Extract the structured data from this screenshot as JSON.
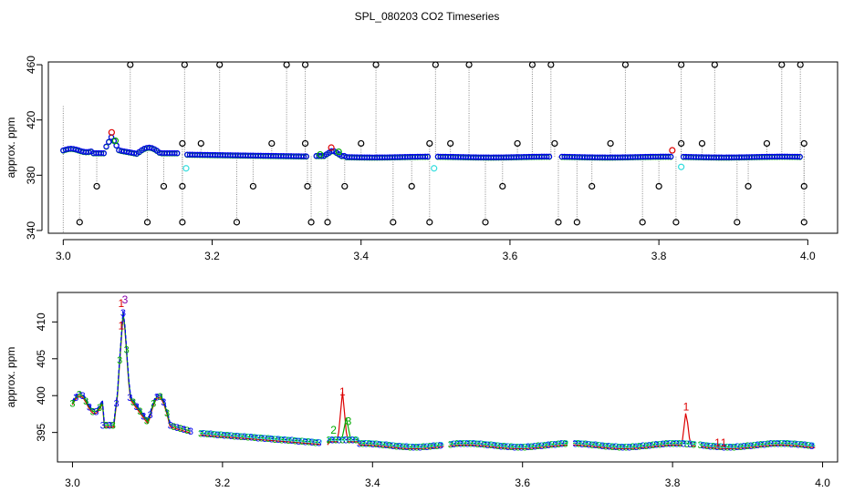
{
  "title": "SPL_080203  CO2 Timeseries",
  "colors": {
    "black": "#000000",
    "red": "#dd0000",
    "green": "#00aa00",
    "blue": "#0000ee",
    "cyan": "#33dddd",
    "grey": "#888888",
    "purple": "#8800aa"
  },
  "chart_data": [
    {
      "type": "scatter",
      "title": "SPL_080203  CO2 Timeseries",
      "xlabel": "",
      "ylabel": "approx. ppm",
      "xlim": [
        2.98,
        4.04
      ],
      "ylim": [
        338,
        462
      ],
      "xticks": [
        3.0,
        3.2,
        3.4,
        3.6,
        3.8,
        4.0
      ],
      "xticklabels": [
        "3.0",
        "3.2",
        "3.4",
        "3.6",
        "3.8",
        "4.0"
      ],
      "yticks": [
        340,
        380,
        420,
        460
      ],
      "yticklabels": [
        "340",
        "380",
        "420",
        "460"
      ],
      "grid": false,
      "legend": "none",
      "gaps": [
        [
          3.155,
          3.165
        ],
        [
          3.328,
          3.338
        ],
        [
          3.492,
          3.502
        ],
        [
          3.655,
          3.668
        ],
        [
          3.818,
          3.83
        ]
      ],
      "outliers_high": [
        3.09,
        3.163,
        3.21,
        3.3,
        3.325,
        3.42,
        3.5,
        3.545,
        3.63,
        3.655,
        3.755,
        3.83,
        3.875,
        3.965,
        3.99
      ],
      "outliers_low": [
        3.022,
        3.113,
        3.16,
        3.233,
        3.333,
        3.355,
        3.443,
        3.492,
        3.567,
        3.665,
        3.69,
        3.778,
        3.823,
        3.905,
        3.995
      ],
      "outliers_mid_high": [
        3.16,
        3.185,
        3.28,
        3.325,
        3.4,
        3.492,
        3.52,
        3.61,
        3.66,
        3.735,
        3.83,
        3.858,
        3.945,
        3.995
      ],
      "outliers_mid_low": [
        3.045,
        3.135,
        3.16,
        3.255,
        3.328,
        3.378,
        3.468,
        3.59,
        3.71,
        3.8,
        3.92,
        3.995
      ],
      "cyan_points": [
        [
          3.165,
          385
        ],
        [
          3.498,
          385
        ],
        [
          3.83,
          386
        ]
      ],
      "red_points": [
        [
          3.065,
          411
        ],
        [
          3.36,
          400
        ],
        [
          3.818,
          398
        ]
      ],
      "green_points": [
        [
          3.07,
          405
        ],
        [
          3.345,
          395
        ],
        [
          3.37,
          397
        ]
      ]
    },
    {
      "type": "line",
      "title": "",
      "xlabel": "",
      "ylabel": "approx. ppm",
      "xlim": [
        2.98,
        4.02
      ],
      "ylim": [
        391,
        414
      ],
      "xticks": [
        3.0,
        3.2,
        3.4,
        3.6,
        3.8,
        4.0
      ],
      "xticklabels": [
        "3.0",
        "3.2",
        "3.4",
        "3.6",
        "3.8",
        "4.0"
      ],
      "yticks": [
        395,
        400,
        405,
        410
      ],
      "yticklabels": [
        "395",
        "400",
        "405",
        "410"
      ],
      "grid": false,
      "legend": "none",
      "point_labels": [
        "1",
        "2",
        "3"
      ],
      "series": [
        {
          "values_note": "",
          "color": "#dd0000"
        },
        {
          "values_note": "",
          "color": "#00aa00"
        },
        {
          "values_note": "",
          "color": "#0000ee"
        }
      ]
    }
  ]
}
